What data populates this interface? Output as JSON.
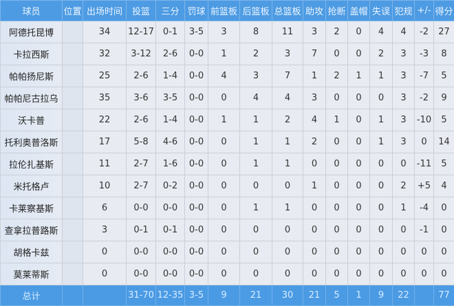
{
  "headers": [
    "球员",
    "位置",
    "出场时间",
    "投篮",
    "三分",
    "罚球",
    "前篮板",
    "后篮板",
    "总篮板",
    "助攻",
    "抢断",
    "盖帽",
    "失误",
    "犯规",
    "+/-",
    "得分"
  ],
  "rows": [
    [
      "阿德托昆博",
      "",
      "34",
      "12-17",
      "0-1",
      "3-5",
      "3",
      "8",
      "11",
      "3",
      "2",
      "0",
      "4",
      "4",
      "-2",
      "27"
    ],
    [
      "卡拉西斯",
      "",
      "32",
      "3-12",
      "2-6",
      "0-0",
      "1",
      "2",
      "3",
      "7",
      "0",
      "0",
      "2",
      "3",
      "-3",
      "8"
    ],
    [
      "帕帕扬尼斯",
      "",
      "25",
      "2-6",
      "1-4",
      "0-0",
      "4",
      "3",
      "7",
      "1",
      "2",
      "1",
      "1",
      "3",
      "-7",
      "5"
    ],
    [
      "帕帕尼古拉乌",
      "",
      "35",
      "3-6",
      "3-5",
      "0-0",
      "0",
      "4",
      "4",
      "3",
      "0",
      "0",
      "0",
      "3",
      "-2",
      "9"
    ],
    [
      "沃卡普",
      "",
      "22",
      "2-6",
      "1-4",
      "0-0",
      "1",
      "1",
      "2",
      "4",
      "1",
      "0",
      "1",
      "3",
      "-10",
      "5"
    ],
    [
      "托利奥普洛斯",
      "",
      "17",
      "5-8",
      "4-6",
      "0-0",
      "0",
      "1",
      "1",
      "2",
      "0",
      "0",
      "1",
      "3",
      "0",
      "14"
    ],
    [
      "拉伦扎基斯",
      "",
      "11",
      "2-7",
      "1-6",
      "0-0",
      "0",
      "1",
      "1",
      "0",
      "0",
      "0",
      "0",
      "0",
      "-11",
      "5"
    ],
    [
      "米托格卢",
      "",
      "10",
      "2-7",
      "0-2",
      "0-0",
      "0",
      "0",
      "0",
      "1",
      "0",
      "0",
      "0",
      "2",
      "+5",
      "4"
    ],
    [
      "卡莱察基斯",
      "",
      "6",
      "0-0",
      "0-0",
      "0-0",
      "0",
      "1",
      "1",
      "0",
      "0",
      "0",
      "0",
      "1",
      "-4",
      "0"
    ],
    [
      "查拿拉普路斯",
      "",
      "3",
      "0-1",
      "0-1",
      "0-0",
      "0",
      "0",
      "0",
      "0",
      "0",
      "0",
      "0",
      "0",
      "-1",
      "0"
    ],
    [
      "胡格卡兹",
      "",
      "0",
      "0-0",
      "0-0",
      "0-0",
      "0",
      "0",
      "0",
      "0",
      "0",
      "0",
      "0",
      "0",
      "0",
      "0"
    ],
    [
      "莫莱蒂斯",
      "",
      "0",
      "0-0",
      "0-0",
      "0-0",
      "0",
      "0",
      "0",
      "0",
      "0",
      "0",
      "0",
      "0",
      "0",
      "0"
    ]
  ],
  "totals": [
    "总计",
    "",
    "",
    "31-70",
    "12-35",
    "3-5",
    "9",
    "21",
    "30",
    "21",
    "5",
    "1",
    "9",
    "22",
    "",
    "77"
  ],
  "colors": {
    "header": "#4d9be3",
    "total_row": "#4b9be4",
    "cell": "#e8ebf1"
  }
}
